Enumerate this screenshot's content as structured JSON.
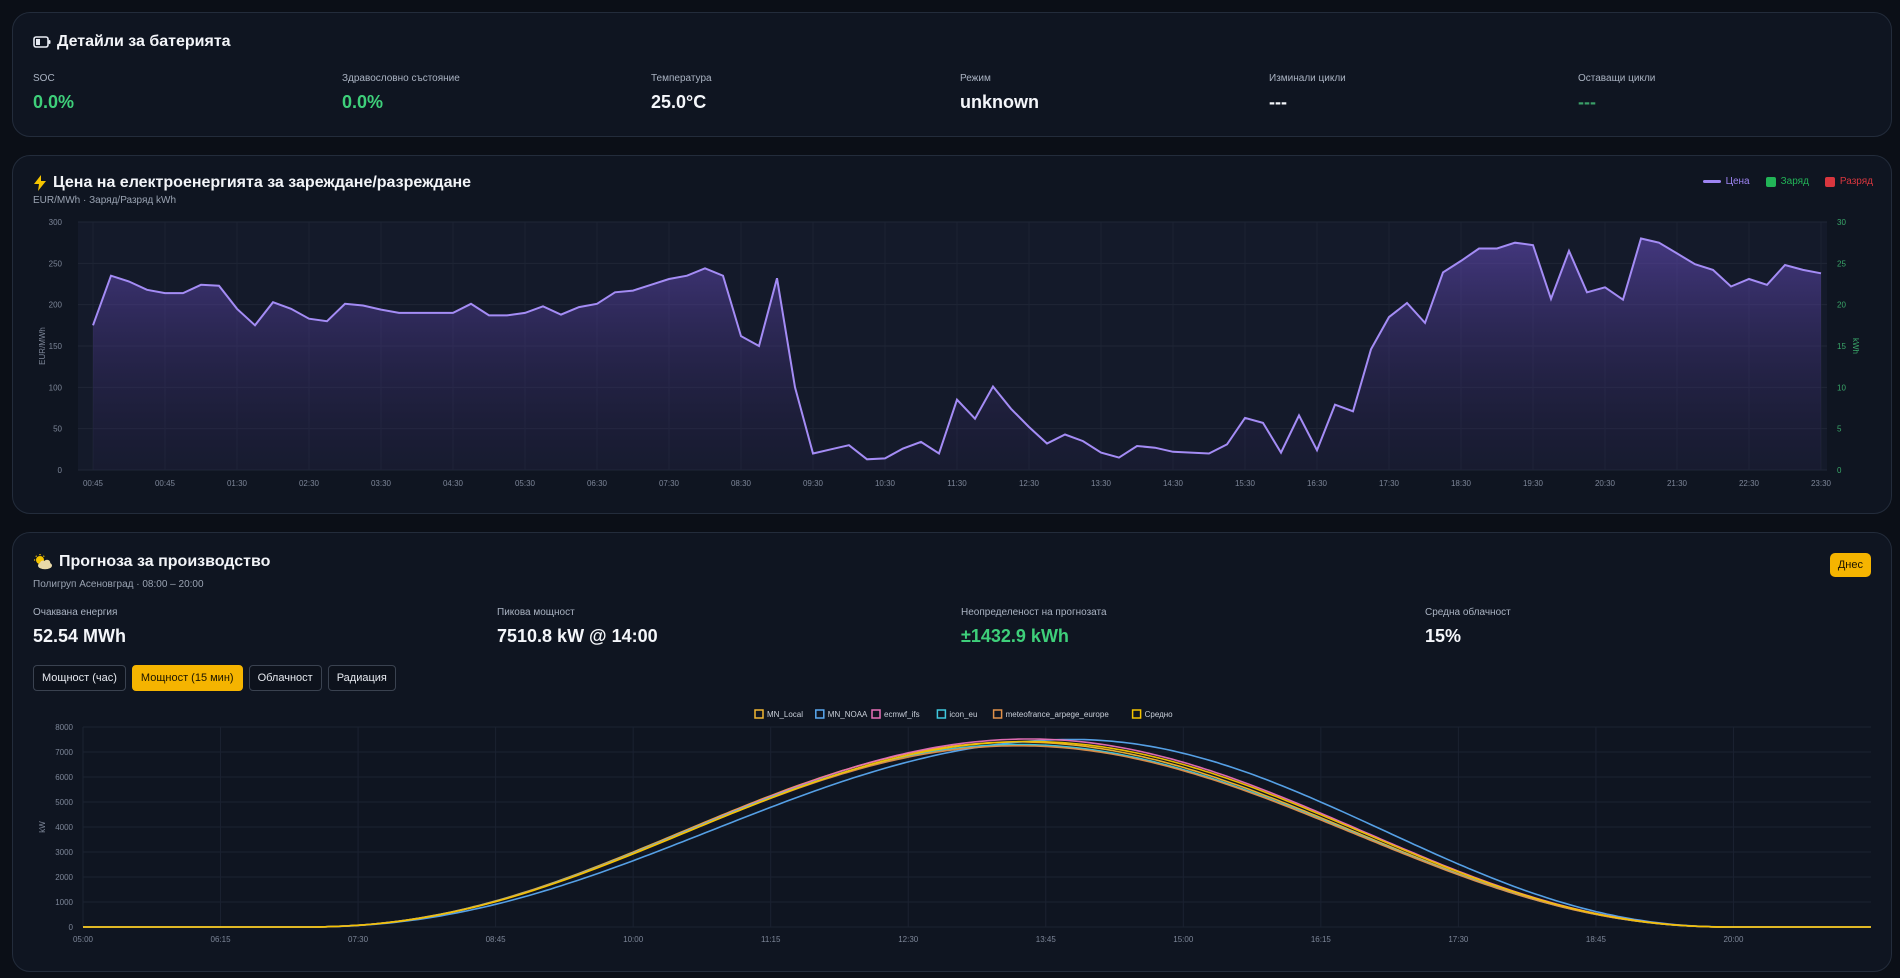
{
  "battery": {
    "title": "Детайли за батерията",
    "icon": "battery-icon",
    "stats": [
      {
        "label": "SOC",
        "value": "0.0%",
        "color": "#3ecf7a"
      },
      {
        "label": "Здравословно състояние",
        "value": "0.0%",
        "color": "#3ecf7a"
      },
      {
        "label": "Температура",
        "value": "25.0°C"
      },
      {
        "label": "Режим",
        "value": "unknown"
      },
      {
        "label": "Изминали цикли",
        "value": "---"
      },
      {
        "label": "Оставащи цикли",
        "value": "---",
        "color": "#3a9f68"
      }
    ]
  },
  "price": {
    "title": "Цена на електроенергията за зареждане/разреждане",
    "icon": "lightning-icon",
    "subtitle": "EUR/MWh · Заряд/Разряд kWh",
    "legend": [
      {
        "label": "Цена",
        "color": "#9d84f2",
        "kind": "line"
      },
      {
        "label": "Заряд",
        "color": "#22b457",
        "kind": "box"
      },
      {
        "label": "Разряд",
        "color": "#d9363e",
        "kind": "box"
      }
    ]
  },
  "forecast": {
    "title": "Прогноза за производство",
    "icon": "sun-cloud-icon",
    "subtitle": "Полигруп Асеновград · 08:00 – 20:00",
    "today_label": "Днес",
    "stats": [
      {
        "label": "Очаквана енергия",
        "value": "52.54 MWh"
      },
      {
        "label": "Пикова мощност",
        "value": "7510.8 kW @ 14:00"
      },
      {
        "label": "Неопределеност на прогнозата",
        "value": "±1432.9 kWh",
        "color": "#3ecf7a"
      },
      {
        "label": "Средна облачност",
        "value": "15%"
      }
    ],
    "tabs": [
      {
        "label": "Мощност (час)",
        "active": false
      },
      {
        "label": "Мощност (15 мин)",
        "active": true
      },
      {
        "label": "Облачност",
        "active": false
      },
      {
        "label": "Радиация",
        "active": false
      }
    ]
  },
  "chart_data": [
    {
      "type": "area",
      "name": "price-chart",
      "ylabel": "EUR/MWh",
      "y2label": "kWh",
      "ylim": [
        0,
        300
      ],
      "y2lim": [
        0,
        30
      ],
      "yticks": [
        0,
        50,
        100,
        150,
        200,
        250,
        300
      ],
      "y2ticks": [
        0,
        5,
        10,
        15,
        20,
        25,
        30
      ],
      "xtick_labels": [
        "00:45",
        "00:45",
        "01:30",
        "02:30",
        "03:30",
        "04:30",
        "05:30",
        "06:30",
        "07:30",
        "08:30",
        "09:30",
        "10:30",
        "11:30",
        "12:30",
        "13:30",
        "14:30",
        "15:30",
        "16:30",
        "17:30",
        "18:30",
        "19:30",
        "20:30",
        "21:30",
        "22:30",
        "23:30"
      ],
      "series": [
        {
          "name": "Цена",
          "color": "#9d84f2",
          "values": [
            175,
            235,
            228,
            218,
            214,
            214,
            224,
            223,
            195,
            175,
            203,
            195,
            183,
            180,
            201,
            199,
            194,
            190,
            190,
            190,
            190,
            201,
            187,
            187,
            190,
            198,
            188,
            197,
            201,
            215,
            217,
            224,
            231,
            235,
            244,
            235,
            162,
            150,
            232,
            100,
            20,
            25,
            30,
            13,
            14,
            26,
            34,
            20,
            85,
            62,
            101,
            74,
            52,
            32,
            43,
            35,
            21,
            15,
            29,
            27,
            22,
            21,
            20,
            31,
            63,
            57,
            21,
            66,
            24,
            79,
            71,
            146,
            185,
            202,
            178,
            239,
            253,
            268,
            268,
            275,
            272,
            207,
            265,
            215,
            221,
            206,
            280,
            275,
            262,
            249,
            242,
            222,
            231,
            224,
            248,
            242,
            238
          ]
        }
      ]
    },
    {
      "type": "line",
      "name": "production-chart",
      "ylabel": "kW",
      "ylim": [
        0,
        8000
      ],
      "yticks": [
        0,
        1000,
        2000,
        3000,
        4000,
        5000,
        6000,
        7000,
        8000
      ],
      "xtick_labels": [
        "05:00",
        "06:15",
        "07:30",
        "08:45",
        "10:00",
        "11:15",
        "12:30",
        "13:45",
        "15:00",
        "16:15",
        "17:30",
        "18:45",
        "20:00"
      ],
      "x_range_hours": [
        5,
        21.25
      ],
      "series": [
        {
          "name": "MN_Local",
          "color": "#f2b632",
          "peak_hour": 13.5,
          "peak": 7400,
          "rise_half_width": 7.0,
          "fall_half_width": 6.0
        },
        {
          "name": "MN_NOAA",
          "color": "#5aa8f0",
          "peak_hour": 14.0,
          "peak": 7500,
          "rise_half_width": 7.3,
          "fall_half_width": 6.2
        },
        {
          "name": "ecmwf_ifs",
          "color": "#e870b8",
          "peak_hour": 13.6,
          "peak": 7520,
          "rise_half_width": 6.6,
          "fall_half_width": 6.0
        },
        {
          "name": "icon_eu",
          "color": "#3fc8de",
          "peak_hour": 13.5,
          "peak": 7300,
          "rise_half_width": 7.0,
          "fall_half_width": 6.0
        },
        {
          "name": "meteofrance_arpege_europe",
          "color": "#e0914a",
          "peak_hour": 13.5,
          "peak": 7250,
          "rise_half_width": 7.0,
          "fall_half_width": 5.9
        },
        {
          "name": "Средно",
          "color": "#f5c400",
          "peak_hour": 13.6,
          "peak": 7420,
          "rise_half_width": 7.0,
          "fall_half_width": 6.0
        }
      ]
    }
  ]
}
